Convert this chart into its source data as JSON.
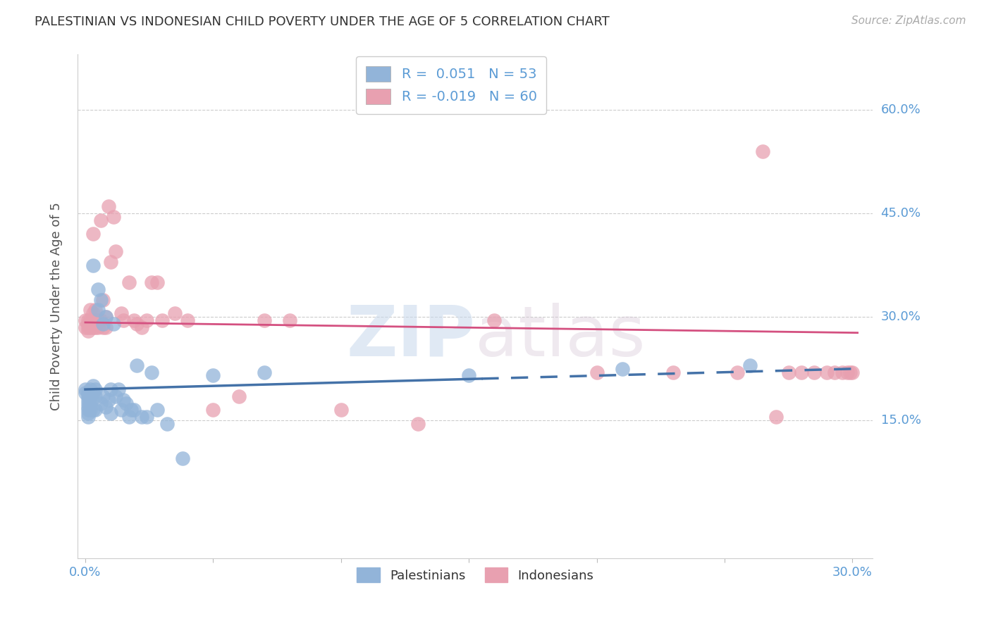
{
  "title": "PALESTINIAN VS INDONESIAN CHILD POVERTY UNDER THE AGE OF 5 CORRELATION CHART",
  "source": "Source: ZipAtlas.com",
  "ylabel": "Child Poverty Under the Age of 5",
  "ytick_labels": [
    "15.0%",
    "30.0%",
    "45.0%",
    "60.0%"
  ],
  "ytick_values": [
    0.15,
    0.3,
    0.45,
    0.6
  ],
  "xlim": [
    0.0,
    0.3
  ],
  "ylim": [
    -0.05,
    0.68
  ],
  "blue_color": "#92b4d9",
  "pink_color": "#e8a0b0",
  "blue_line_color": "#4472a8",
  "pink_line_color": "#d45080",
  "watermark_zip": "ZIP",
  "watermark_atlas": "atlas",
  "palestinians_x": [
    0.0,
    0.0,
    0.001,
    0.001,
    0.001,
    0.001,
    0.001,
    0.001,
    0.001,
    0.001,
    0.002,
    0.002,
    0.002,
    0.002,
    0.003,
    0.003,
    0.003,
    0.003,
    0.004,
    0.004,
    0.004,
    0.005,
    0.005,
    0.006,
    0.006,
    0.007,
    0.007,
    0.008,
    0.008,
    0.009,
    0.01,
    0.01,
    0.011,
    0.012,
    0.013,
    0.014,
    0.015,
    0.016,
    0.017,
    0.018,
    0.019,
    0.02,
    0.022,
    0.024,
    0.026,
    0.028,
    0.032,
    0.038,
    0.05,
    0.07,
    0.15,
    0.21,
    0.26
  ],
  "palestinians_y": [
    0.195,
    0.19,
    0.19,
    0.185,
    0.18,
    0.175,
    0.17,
    0.165,
    0.16,
    0.155,
    0.195,
    0.185,
    0.175,
    0.165,
    0.375,
    0.2,
    0.19,
    0.165,
    0.195,
    0.185,
    0.165,
    0.34,
    0.31,
    0.325,
    0.175,
    0.29,
    0.185,
    0.3,
    0.17,
    0.18,
    0.195,
    0.16,
    0.29,
    0.185,
    0.195,
    0.165,
    0.18,
    0.175,
    0.155,
    0.165,
    0.165,
    0.23,
    0.155,
    0.155,
    0.22,
    0.165,
    0.145,
    0.095,
    0.215,
    0.22,
    0.215,
    0.225,
    0.23
  ],
  "indonesians_x": [
    0.0,
    0.0,
    0.001,
    0.001,
    0.001,
    0.001,
    0.002,
    0.002,
    0.002,
    0.003,
    0.003,
    0.003,
    0.004,
    0.004,
    0.004,
    0.005,
    0.005,
    0.006,
    0.006,
    0.007,
    0.007,
    0.008,
    0.008,
    0.009,
    0.01,
    0.011,
    0.012,
    0.014,
    0.015,
    0.017,
    0.019,
    0.02,
    0.022,
    0.024,
    0.026,
    0.028,
    0.03,
    0.035,
    0.04,
    0.05,
    0.06,
    0.07,
    0.08,
    0.1,
    0.13,
    0.16,
    0.2,
    0.23,
    0.255,
    0.265,
    0.27,
    0.275,
    0.28,
    0.285,
    0.29,
    0.293,
    0.296,
    0.298,
    0.299,
    0.3
  ],
  "indonesians_y": [
    0.295,
    0.285,
    0.295,
    0.29,
    0.285,
    0.28,
    0.31,
    0.295,
    0.285,
    0.305,
    0.285,
    0.42,
    0.31,
    0.295,
    0.285,
    0.295,
    0.285,
    0.44,
    0.295,
    0.325,
    0.285,
    0.3,
    0.285,
    0.46,
    0.38,
    0.445,
    0.395,
    0.305,
    0.295,
    0.35,
    0.295,
    0.29,
    0.285,
    0.295,
    0.35,
    0.35,
    0.295,
    0.305,
    0.295,
    0.165,
    0.185,
    0.295,
    0.295,
    0.165,
    0.145,
    0.295,
    0.22,
    0.22,
    0.22,
    0.54,
    0.155,
    0.22,
    0.22,
    0.22,
    0.22,
    0.22,
    0.22,
    0.22,
    0.22,
    0.22
  ]
}
